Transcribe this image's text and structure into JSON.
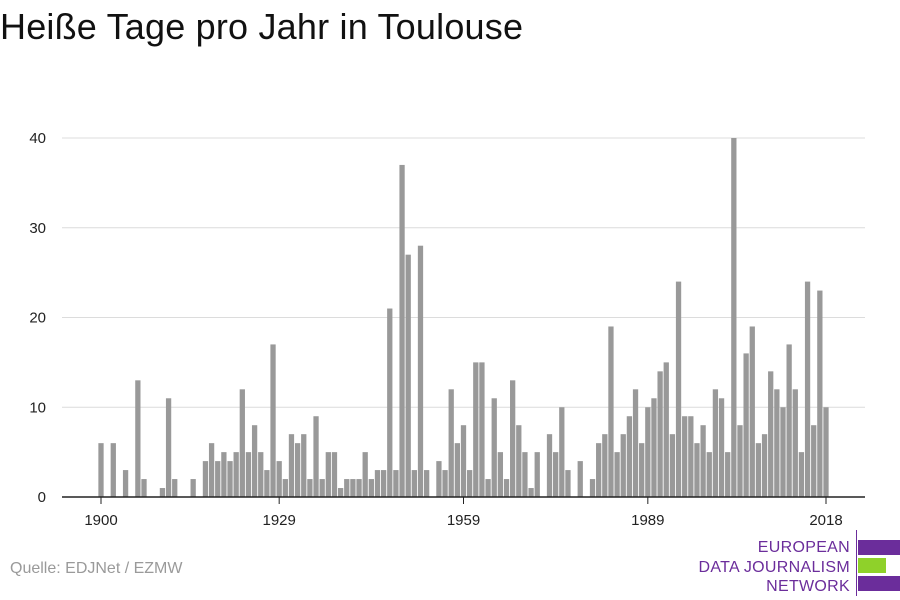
{
  "title": "Heiße Tage pro Jahr in Toulouse",
  "source": "Quelle: EDJNet / EZMW",
  "logo": {
    "lines": [
      "EUROPEAN",
      "DATA JOURNALISM",
      "NETWORK"
    ],
    "colors": {
      "purple": "#6b2d9b",
      "green": "#8fd12a"
    }
  },
  "chart_data": {
    "type": "bar",
    "title": "Heiße Tage pro Jahr in Toulouse",
    "xlabel": "",
    "ylabel": "",
    "bar_color": "#999999",
    "grid": true,
    "ylim": [
      0,
      40
    ],
    "yticks": [
      0,
      10,
      20,
      30,
      40
    ],
    "xticks": [
      1900,
      1929,
      1959,
      1989,
      2018
    ],
    "x": [
      1900,
      1901,
      1902,
      1903,
      1904,
      1905,
      1906,
      1907,
      1908,
      1909,
      1910,
      1911,
      1912,
      1913,
      1914,
      1915,
      1916,
      1917,
      1918,
      1919,
      1920,
      1921,
      1922,
      1923,
      1924,
      1925,
      1926,
      1927,
      1928,
      1929,
      1930,
      1931,
      1932,
      1933,
      1934,
      1935,
      1936,
      1937,
      1938,
      1939,
      1940,
      1941,
      1942,
      1943,
      1944,
      1945,
      1946,
      1947,
      1948,
      1949,
      1950,
      1951,
      1952,
      1953,
      1954,
      1955,
      1956,
      1957,
      1958,
      1959,
      1960,
      1961,
      1962,
      1963,
      1964,
      1965,
      1966,
      1967,
      1968,
      1969,
      1970,
      1971,
      1972,
      1973,
      1974,
      1975,
      1976,
      1977,
      1978,
      1979,
      1980,
      1981,
      1982,
      1983,
      1984,
      1985,
      1986,
      1987,
      1988,
      1989,
      1990,
      1991,
      1992,
      1993,
      1994,
      1995,
      1996,
      1997,
      1998,
      1999,
      2000,
      2001,
      2002,
      2003,
      2004,
      2005,
      2006,
      2007,
      2008,
      2009,
      2010,
      2011,
      2012,
      2013,
      2014,
      2015,
      2016,
      2017,
      2018
    ],
    "values": [
      6,
      0,
      6,
      0,
      3,
      0,
      13,
      2,
      0,
      0,
      1,
      11,
      2,
      0,
      0,
      2,
      0,
      4,
      6,
      4,
      5,
      4,
      5,
      12,
      5,
      8,
      5,
      3,
      17,
      4,
      2,
      7,
      6,
      7,
      2,
      9,
      2,
      5,
      5,
      1,
      2,
      2,
      2,
      5,
      2,
      3,
      3,
      21,
      3,
      37,
      27,
      3,
      28,
      3,
      0,
      4,
      3,
      12,
      6,
      8,
      3,
      15,
      15,
      2,
      11,
      5,
      2,
      13,
      8,
      5,
      1,
      5,
      0,
      7,
      5,
      10,
      3,
      0,
      4,
      0,
      2,
      6,
      7,
      19,
      5,
      7,
      9,
      12,
      6,
      10,
      11,
      14,
      15,
      7,
      24,
      9,
      9,
      6,
      8,
      5,
      12,
      11,
      5,
      40,
      8,
      16,
      19,
      6,
      7,
      14,
      12,
      10,
      17,
      12,
      5,
      24,
      8,
      23,
      10
    ]
  }
}
